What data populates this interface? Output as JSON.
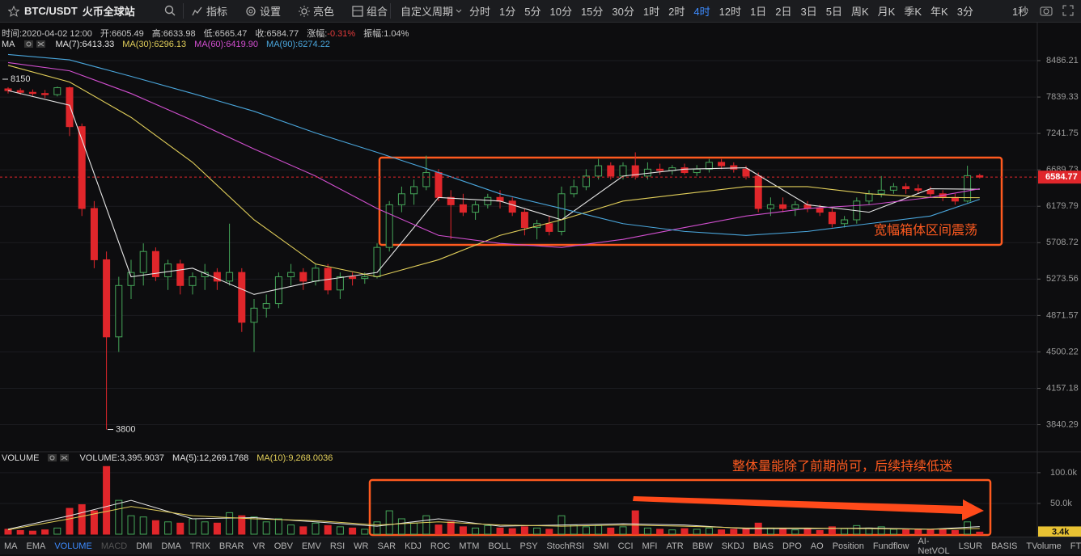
{
  "toolbar": {
    "symbol": "BTC/USDT",
    "exchange": "火币全球站",
    "buttons": [
      "指标",
      "设置",
      "亮色",
      "组合"
    ],
    "custom_period": "自定义周期",
    "periods": [
      "分时",
      "1分",
      "5分",
      "10分",
      "15分",
      "30分",
      "1时",
      "2时",
      "4时",
      "12时",
      "1日",
      "2日",
      "3日",
      "5日",
      "周K",
      "月K",
      "季K",
      "年K",
      "3分"
    ],
    "active_period": "4时",
    "refresh": "1秒"
  },
  "info": [
    "时间:2020-04-02 12:00",
    "开:6605.49",
    "高:6633.98",
    "低:6565.47",
    "收:6584.77"
  ],
  "change_label": "涨幅:",
  "change": "-0.31%",
  "amplitude": "振幅:1.04%",
  "notes": [
    "宽幅箱体区间震荡",
    "整体量能除了前期尚可，后续持续低迷"
  ],
  "indicator_tabs": [
    "MA",
    "EMA",
    "VOLUME",
    "MACD",
    "DMI",
    "DMA",
    "TRIX",
    "BRAR",
    "VR",
    "OBV",
    "EMV",
    "RSI",
    "WR",
    "SAR",
    "KDJ",
    "ROC",
    "MTM",
    "BOLL",
    "PSY",
    "StochRSI",
    "SMI",
    "CCI",
    "MFI",
    "ATR",
    "BBW",
    "SKDJ",
    "BIAS",
    "DPO",
    "AO",
    "Position",
    "Fundflow",
    "AI-NetVOL",
    "LSUR",
    "BASIS",
    "TVolume",
    "FTBS"
  ],
  "active_tab": "VOLUME",
  "disabled_tab": "MACD",
  "chart_data": [
    {
      "type": "candlestick",
      "log": true,
      "ylim": [
        3627,
        9186
      ],
      "yticks": [
        8486.21,
        7839.33,
        7241.75,
        6689.73,
        6179.79,
        5708.72,
        5273.56,
        4871.57,
        4500.22,
        4157.18,
        3840.29
      ],
      "up_color": "#45a659",
      "down_color": "#e0262b",
      "current": 6584.77,
      "annotations": [
        8150,
        3800
      ],
      "candles": {
        "open": [
          7980,
          7950,
          7920,
          7900,
          7880,
          8000,
          7350,
          6150,
          5500,
          4650,
          5200,
          5350,
          5600,
          5300,
          5450,
          5200,
          5300,
          5350,
          5250,
          5350,
          4800,
          4950,
          5000,
          5300,
          5350,
          5250,
          5400,
          5150,
          5300,
          5280,
          5300,
          5650,
          6200,
          6350,
          6450,
          6650,
          6300,
          6200,
          6100,
          6200,
          6300,
          6250,
          6100,
          5900,
          5950,
          5850,
          6350,
          6450,
          6600,
          6750,
          6600,
          6750,
          6600,
          6700,
          6680,
          6720,
          6650,
          6700,
          6800,
          6750,
          6700,
          6600,
          6150,
          6200,
          6150,
          6200,
          6150,
          6100,
          5950,
          6000,
          6250,
          6350,
          6400,
          6450,
          6420,
          6400,
          6350,
          6300,
          6250,
          6605.49
        ],
        "high": [
          8010,
          7990,
          7970,
          7960,
          8020,
          8020,
          7400,
          6250,
          5600,
          5300,
          5500,
          5700,
          5650,
          5500,
          5500,
          5350,
          5450,
          5400,
          5950,
          5400,
          5050,
          5100,
          5350,
          5450,
          5400,
          5450,
          5450,
          5350,
          5350,
          5350,
          5700,
          6250,
          6450,
          6550,
          6900,
          6700,
          6400,
          6350,
          6250,
          6350,
          6400,
          6300,
          6150,
          6000,
          6050,
          6450,
          6550,
          6700,
          6850,
          6800,
          6800,
          6950,
          6800,
          6780,
          6760,
          6780,
          6760,
          6850,
          6850,
          6800,
          6750,
          6650,
          6300,
          6300,
          6250,
          6250,
          6200,
          6150,
          6050,
          6300,
          6400,
          6600,
          6500,
          6500,
          6480,
          6450,
          6400,
          6350,
          6750,
          6633.98
        ],
        "low": [
          7900,
          7880,
          7860,
          7820,
          7850,
          7200,
          6050,
          5400,
          3800,
          4500,
          5050,
          5200,
          5250,
          5150,
          5100,
          5100,
          5150,
          5150,
          5200,
          4700,
          4500,
          4850,
          4950,
          5200,
          5150,
          5200,
          5100,
          5050,
          5200,
          5220,
          5280,
          5600,
          6100,
          6200,
          6400,
          6250,
          5750,
          6050,
          6000,
          6150,
          6150,
          6050,
          5800,
          5750,
          5800,
          5800,
          6300,
          6400,
          6550,
          6550,
          6550,
          6550,
          6550,
          6620,
          6620,
          6620,
          6600,
          6650,
          6700,
          6650,
          6550,
          6100,
          6050,
          6100,
          6050,
          6100,
          6050,
          5900,
          5900,
          5950,
          6200,
          6300,
          6350,
          6350,
          6350,
          6300,
          6250,
          6200,
          6230,
          6565.47
        ],
        "close": [
          7950,
          7920,
          7900,
          7880,
          8000,
          7350,
          6150,
          5500,
          4650,
          5200,
          5350,
          5600,
          5300,
          5450,
          5200,
          5300,
          5350,
          5250,
          5350,
          4800,
          4950,
          5000,
          5300,
          5350,
          5250,
          5400,
          5150,
          5300,
          5280,
          5300,
          5650,
          6200,
          6350,
          6450,
          6650,
          6300,
          6200,
          6100,
          6200,
          6300,
          6250,
          6100,
          5900,
          5950,
          5850,
          6350,
          6450,
          6600,
          6750,
          6600,
          6750,
          6600,
          6700,
          6680,
          6720,
          6650,
          6700,
          6800,
          6750,
          6700,
          6600,
          6150,
          6200,
          6150,
          6200,
          6150,
          6100,
          5950,
          6000,
          6250,
          6350,
          6400,
          6450,
          6420,
          6400,
          6350,
          6300,
          6250,
          6605.49,
          6584.77
        ]
      },
      "ma_x": [
        0,
        5,
        10,
        15,
        20,
        25,
        30,
        35,
        40,
        45,
        50,
        55,
        60,
        65,
        70,
        75,
        79
      ],
      "series": [
        {
          "color": "#e6e6e6",
          "values": [
            7950,
            7700,
            5300,
            5400,
            5100,
            5250,
            5350,
            6300,
            6250,
            6000,
            6600,
            6700,
            6720,
            6200,
            6100,
            6420,
            6413.33
          ]
        },
        {
          "color": "#e2cf5a",
          "values": [
            8400,
            8100,
            7500,
            6800,
            6000,
            5450,
            5300,
            5500,
            5800,
            6000,
            6250,
            6350,
            6450,
            6450,
            6350,
            6300,
            6296.13
          ]
        },
        {
          "color": "#d24fd0",
          "values": [
            8450,
            8300,
            7900,
            7450,
            7000,
            6600,
            6150,
            5800,
            5700,
            5650,
            5750,
            5900,
            6050,
            6150,
            6200,
            6300,
            6419.9
          ]
        },
        {
          "color": "#4aa6dc",
          "values": [
            8600,
            8500,
            8200,
            7900,
            7600,
            7250,
            6950,
            6650,
            6350,
            6150,
            5950,
            5850,
            5800,
            5850,
            5950,
            6050,
            6274.22
          ]
        }
      ],
      "legend_title": "MA",
      "legend": [
        "MA(7):6413.33",
        "MA(30):6296.13",
        "MA(60):6419.90",
        "MA(90):6274.22"
      ]
    },
    {
      "type": "bar",
      "ylim": [
        0,
        113000
      ],
      "yticks": [
        {
          "value": 100000,
          "label": "100.0k"
        },
        {
          "value": 50000,
          "label": "50.0k"
        }
      ],
      "current": {
        "value": 3395.9037,
        "label": "3.4k"
      },
      "values": [
        8000,
        6000,
        5000,
        7000,
        10000,
        42000,
        48000,
        38000,
        110000,
        55000,
        30000,
        28000,
        22000,
        20000,
        18000,
        25000,
        20000,
        18000,
        35000,
        30000,
        28000,
        20000,
        25000,
        15000,
        12000,
        18000,
        14000,
        12000,
        10000,
        8000,
        20000,
        38000,
        25000,
        18000,
        30000,
        15000,
        20000,
        12000,
        10000,
        14000,
        10000,
        9000,
        12000,
        10000,
        8000,
        30000,
        15000,
        12000,
        14000,
        10000,
        12000,
        38000,
        10000,
        8000,
        7000,
        9000,
        8000,
        10000,
        7000,
        8000,
        9000,
        18000,
        10000,
        8000,
        7000,
        8000,
        6000,
        12000,
        9000,
        14000,
        10000,
        12000,
        8000,
        7000,
        8000,
        7000,
        8000,
        6000,
        20000,
        3395.9037
      ],
      "series": [
        {
          "color": "#e6e6e6",
          "values": [
            8000,
            30000,
            55000,
            25000,
            27000,
            20000,
            13000,
            25000,
            13000,
            15000,
            17000,
            15000,
            9000,
            9000,
            10000,
            8000,
            12269.1768
          ]
        },
        {
          "color": "#e2cf5a",
          "values": [
            7000,
            25000,
            45000,
            30000,
            25000,
            22000,
            15000,
            20000,
            15000,
            13000,
            15000,
            13000,
            10000,
            10000,
            9000,
            8000,
            9268.0036
          ]
        }
      ],
      "legend_title": "VOLUME",
      "legend": [
        "VOLUME:3,395.9037",
        "MA(5):12,269.1768",
        "MA(10):9,268.0036"
      ]
    }
  ]
}
